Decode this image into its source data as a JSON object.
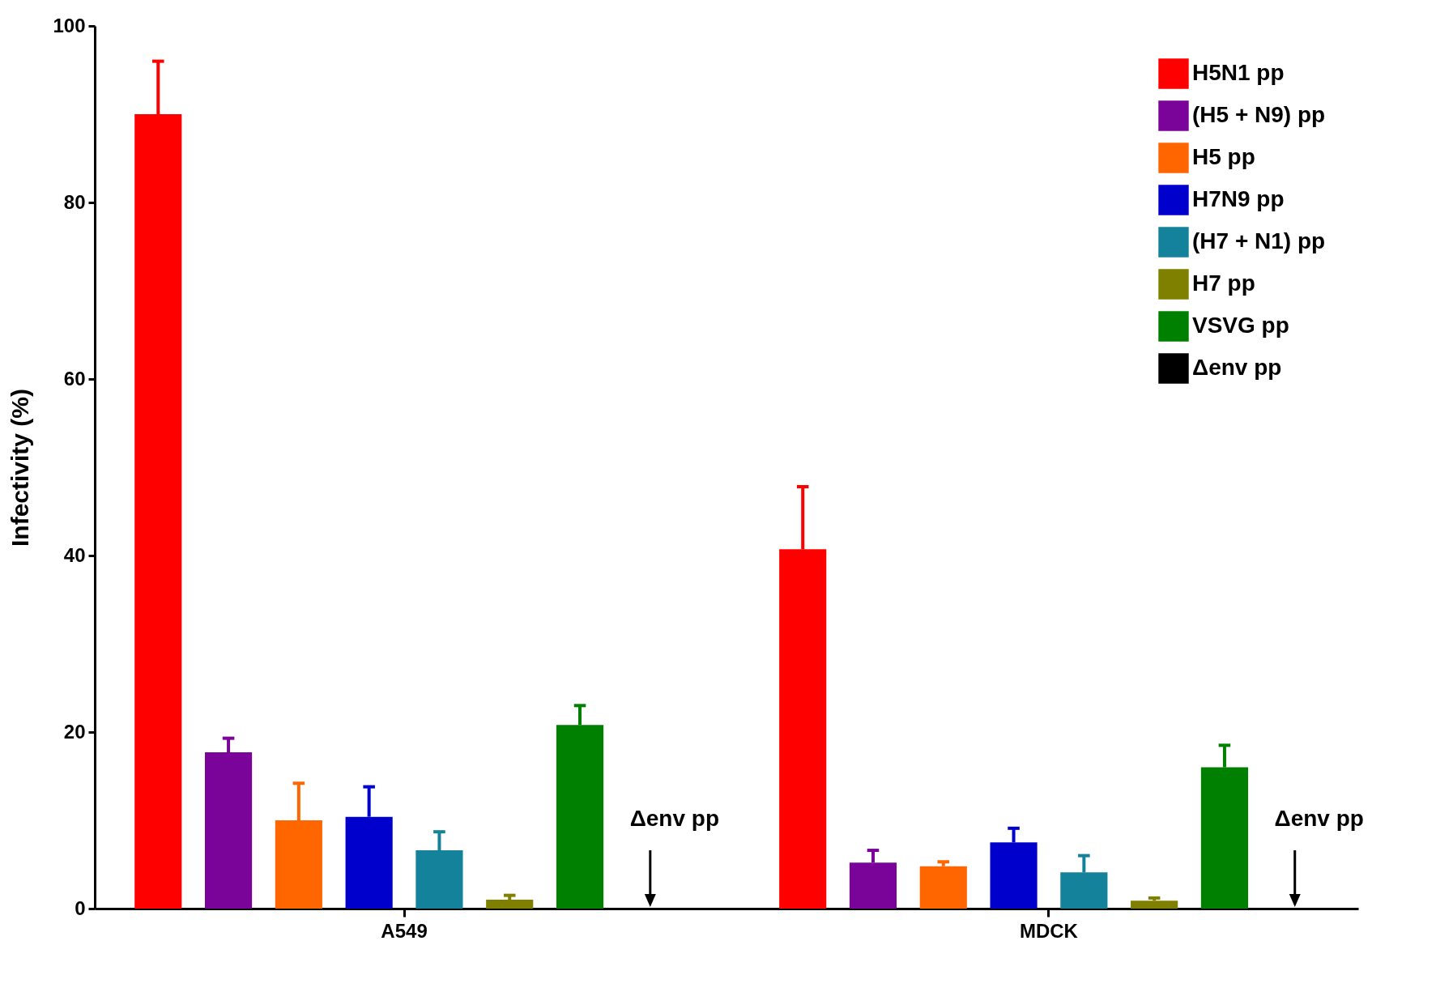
{
  "chart_data": {
    "type": "bar",
    "ylabel": "Infectivity (%)",
    "categories": [
      "A549",
      "MDCK"
    ],
    "series": [
      {
        "name": "H5N1 pp",
        "color": "#ff0000",
        "values": [
          90,
          40.7
        ],
        "errors": [
          [
            90,
            96
          ],
          [
            40.7,
            47.8
          ]
        ]
      },
      {
        "name": "(H5 + N9) pp",
        "color": "#7a0399",
        "values": [
          17.7,
          5.2
        ],
        "errors": [
          [
            17.7,
            19.3
          ],
          [
            5.2,
            6.6
          ]
        ]
      },
      {
        "name": "H5 pp",
        "color": "#ff6600",
        "values": [
          10,
          4.8
        ],
        "errors": [
          [
            10,
            14.2
          ],
          [
            4.8,
            5.3
          ]
        ]
      },
      {
        "name": "H7N9 pp",
        "color": "#0000cc",
        "values": [
          10.4,
          7.5
        ],
        "errors": [
          [
            10.4,
            13.8
          ],
          [
            7.5,
            9.1
          ]
        ]
      },
      {
        "name": "(H7 + N1) pp",
        "color": "#13829a",
        "values": [
          6.6,
          4.1
        ],
        "errors": [
          [
            6.6,
            8.7
          ],
          [
            4.1,
            6.0
          ]
        ]
      },
      {
        "name": "H7 pp",
        "color": "#808000",
        "values": [
          1.0,
          0.9
        ],
        "errors": [
          [
            1.0,
            1.5
          ],
          [
            0.9,
            1.2
          ]
        ]
      },
      {
        "name": "VSVG pp",
        "color": "#008000",
        "values": [
          20.8,
          16
        ],
        "errors": [
          [
            20.8,
            23
          ],
          [
            16,
            18.5
          ]
        ]
      },
      {
        "name": "Δenv pp",
        "color": "#000000",
        "values": [
          0,
          0
        ]
      }
    ],
    "annotations": [
      "Δenv pp",
      "Δenv pp"
    ],
    "ylim": [
      0,
      100
    ],
    "yticks": [
      0,
      20,
      40,
      60,
      80,
      100
    ],
    "grid": false,
    "legend": "top right"
  }
}
